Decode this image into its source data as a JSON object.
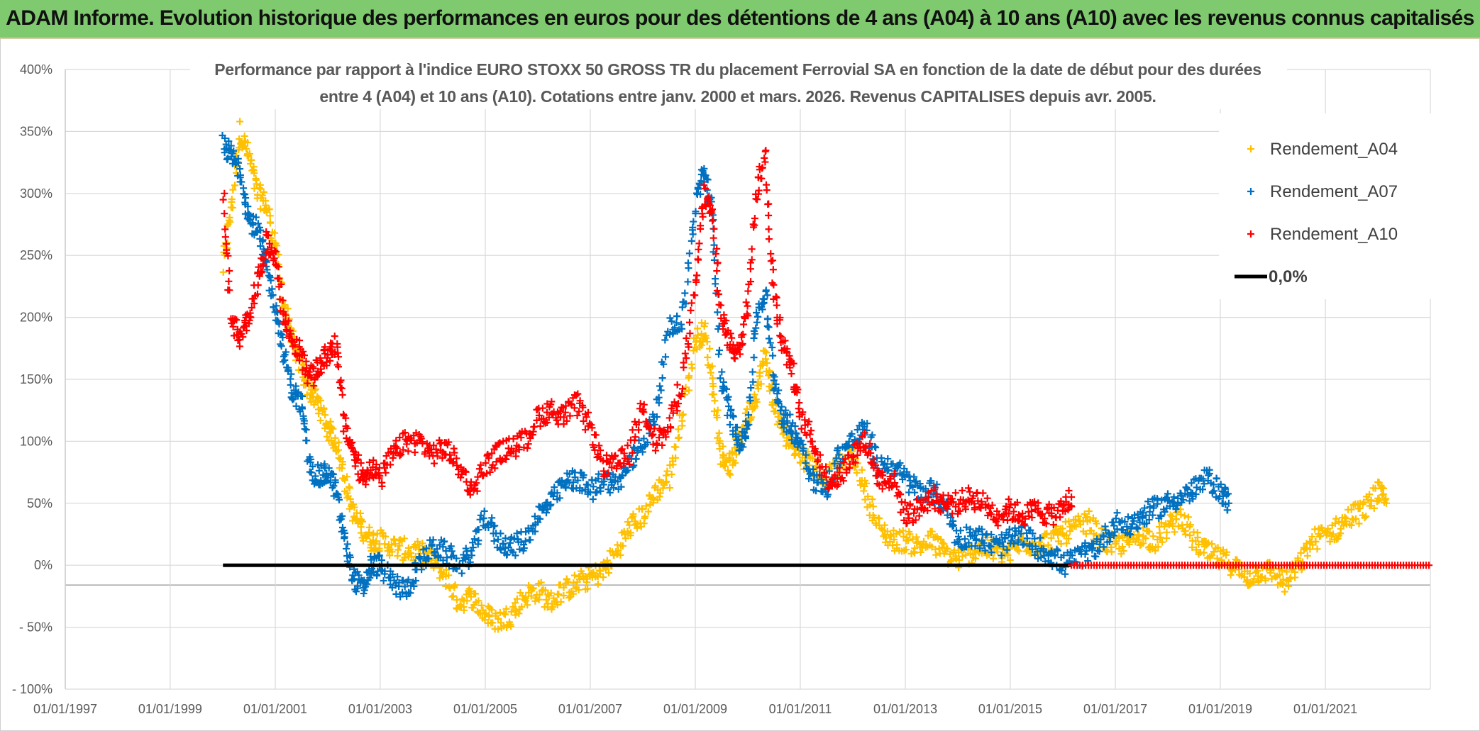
{
  "banner": {
    "title": "ADAM Informe. Evolution historique des performances en euros pour des détentions de 4 ans (A04) à 10 ans (A10) avec les revenus connus capitalisés"
  },
  "colors": {
    "banner_bg": "#7fca6e",
    "banner_accent": "#e8c000",
    "A04": "#ffc000",
    "A07": "#0070c0",
    "A10": "#ff0000",
    "zero": "#000000",
    "grid": "#d9d9d9"
  },
  "chart_data": {
    "type": "scatter",
    "title_line1": "Performance par rapport à l'indice EURO STOXX 50 GROSS TR  du placement Ferrovial SA en fonction de la date de début pour des durées",
    "title_line2": "entre 4 (A04) et 10 ans (A10). Cotations entre janv. 2000 et mars. 2026. Revenus CAPITALISES depuis avr. 2005.",
    "xlabel": "",
    "ylabel": "",
    "x_tick_labels": [
      "01/01/1997",
      "01/01/1999",
      "01/01/2001",
      "01/01/2003",
      "01/01/2005",
      "01/01/2007",
      "01/01/2009",
      "01/01/2011",
      "01/01/2013",
      "01/01/2015",
      "01/01/2017",
      "01/01/2019",
      "01/01/2021"
    ],
    "xlim": [
      "1997-01-01",
      "2023-01-01"
    ],
    "y_tick_labels": [
      "400%",
      "350%",
      "300%",
      "250%",
      "200%",
      "150%",
      "100%",
      "50%",
      "0%",
      "- 50%",
      "- 100%"
    ],
    "y_ticks": [
      400,
      350,
      300,
      250,
      200,
      150,
      100,
      50,
      0,
      -50,
      -100
    ],
    "ylim": [
      -100,
      400
    ],
    "grid": true,
    "legend_position": "top-right",
    "marker": "+",
    "series": [
      {
        "name": "Rendement_A04",
        "color": "#ffc000",
        "points": [
          [
            "2000-01-03",
            240
          ],
          [
            "2000-03-01",
            290
          ],
          [
            "2000-05-01",
            350
          ],
          [
            "2000-07-01",
            330
          ],
          [
            "2000-09-01",
            300
          ],
          [
            "2000-11-01",
            290
          ],
          [
            "2001-01-01",
            260
          ],
          [
            "2001-03-01",
            210
          ],
          [
            "2001-05-01",
            180
          ],
          [
            "2001-07-01",
            160
          ],
          [
            "2001-09-01",
            140
          ],
          [
            "2001-11-01",
            130
          ],
          [
            "2002-01-01",
            110
          ],
          [
            "2002-03-01",
            100
          ],
          [
            "2002-05-01",
            70
          ],
          [
            "2002-07-01",
            40
          ],
          [
            "2002-09-01",
            30
          ],
          [
            "2002-11-01",
            20
          ],
          [
            "2003-01-01",
            20
          ],
          [
            "2003-04-01",
            15
          ],
          [
            "2003-07-01",
            12
          ],
          [
            "2003-10-01",
            10
          ],
          [
            "2004-01-01",
            5
          ],
          [
            "2004-04-01",
            -10
          ],
          [
            "2004-07-01",
            -30
          ],
          [
            "2004-10-01",
            -25
          ],
          [
            "2005-01-01",
            -40
          ],
          [
            "2005-04-01",
            -45
          ],
          [
            "2005-07-01",
            -40
          ],
          [
            "2005-10-01",
            -25
          ],
          [
            "2006-01-01",
            -20
          ],
          [
            "2006-04-01",
            -30
          ],
          [
            "2006-07-01",
            -20
          ],
          [
            "2006-10-01",
            -15
          ],
          [
            "2007-01-01",
            -10
          ],
          [
            "2007-04-01",
            -5
          ],
          [
            "2007-07-01",
            10
          ],
          [
            "2007-10-01",
            30
          ],
          [
            "2008-01-01",
            40
          ],
          [
            "2008-04-01",
            60
          ],
          [
            "2008-07-01",
            70
          ],
          [
            "2008-10-01",
            120
          ],
          [
            "2009-01-01",
            180
          ],
          [
            "2009-03-01",
            190
          ],
          [
            "2009-05-01",
            150
          ],
          [
            "2009-07-01",
            90
          ],
          [
            "2009-09-01",
            80
          ],
          [
            "2009-11-01",
            100
          ],
          [
            "2010-01-01",
            120
          ],
          [
            "2010-03-01",
            140
          ],
          [
            "2010-05-01",
            170
          ],
          [
            "2010-07-01",
            130
          ],
          [
            "2010-09-01",
            110
          ],
          [
            "2010-11-01",
            100
          ],
          [
            "2011-01-01",
            90
          ],
          [
            "2011-04-01",
            80
          ],
          [
            "2011-07-01",
            70
          ],
          [
            "2011-10-01",
            80
          ],
          [
            "2012-01-01",
            90
          ],
          [
            "2012-04-01",
            60
          ],
          [
            "2012-07-01",
            30
          ],
          [
            "2012-10-01",
            20
          ],
          [
            "2013-01-01",
            20
          ],
          [
            "2013-04-01",
            15
          ],
          [
            "2013-07-01",
            20
          ],
          [
            "2013-10-01",
            10
          ],
          [
            "2014-01-01",
            5
          ],
          [
            "2014-04-01",
            10
          ],
          [
            "2014-07-01",
            15
          ],
          [
            "2014-10-01",
            10
          ],
          [
            "2015-01-01",
            10
          ],
          [
            "2015-04-01",
            20
          ],
          [
            "2015-07-01",
            15
          ],
          [
            "2015-10-01",
            20
          ],
          [
            "2016-01-01",
            25
          ],
          [
            "2016-04-01",
            30
          ],
          [
            "2016-07-01",
            35
          ],
          [
            "2016-10-01",
            20
          ],
          [
            "2017-01-01",
            15
          ],
          [
            "2017-04-01",
            20
          ],
          [
            "2017-07-01",
            25
          ],
          [
            "2017-10-01",
            20
          ],
          [
            "2018-01-01",
            30
          ],
          [
            "2018-04-01",
            40
          ],
          [
            "2018-07-01",
            20
          ],
          [
            "2018-10-01",
            10
          ],
          [
            "2019-01-01",
            5
          ],
          [
            "2019-04-01",
            0
          ],
          [
            "2019-07-01",
            -10
          ],
          [
            "2019-10-01",
            -5
          ],
          [
            "2020-01-01",
            -5
          ],
          [
            "2020-04-01",
            -15
          ],
          [
            "2020-07-01",
            0
          ],
          [
            "2020-10-01",
            20
          ],
          [
            "2021-01-01",
            25
          ],
          [
            "2021-04-01",
            30
          ],
          [
            "2021-07-01",
            40
          ],
          [
            "2021-10-01",
            45
          ],
          [
            "2022-01-01",
            60
          ],
          [
            "2022-03-01",
            50
          ]
        ]
      },
      {
        "name": "Rendement_A07",
        "color": "#0070c0",
        "points": [
          [
            "2000-01-03",
            340
          ],
          [
            "2000-03-01",
            330
          ],
          [
            "2000-05-01",
            320
          ],
          [
            "2000-07-01",
            280
          ],
          [
            "2000-09-01",
            270
          ],
          [
            "2000-11-01",
            240
          ],
          [
            "2001-01-01",
            210
          ],
          [
            "2001-03-01",
            170
          ],
          [
            "2001-05-01",
            140
          ],
          [
            "2001-07-01",
            130
          ],
          [
            "2001-09-01",
            80
          ],
          [
            "2001-11-01",
            70
          ],
          [
            "2002-01-01",
            75
          ],
          [
            "2002-03-01",
            60
          ],
          [
            "2002-05-01",
            20
          ],
          [
            "2002-07-01",
            -10
          ],
          [
            "2002-09-01",
            -20
          ],
          [
            "2002-11-01",
            0
          ],
          [
            "2003-01-01",
            0
          ],
          [
            "2003-04-01",
            -15
          ],
          [
            "2003-07-01",
            -20
          ],
          [
            "2003-10-01",
            0
          ],
          [
            "2004-01-01",
            15
          ],
          [
            "2004-04-01",
            10
          ],
          [
            "2004-07-01",
            0
          ],
          [
            "2004-10-01",
            10
          ],
          [
            "2005-01-01",
            40
          ],
          [
            "2005-04-01",
            20
          ],
          [
            "2005-07-01",
            15
          ],
          [
            "2005-10-01",
            20
          ],
          [
            "2006-01-01",
            40
          ],
          [
            "2006-04-01",
            50
          ],
          [
            "2006-07-01",
            65
          ],
          [
            "2006-10-01",
            70
          ],
          [
            "2007-01-01",
            60
          ],
          [
            "2007-04-01",
            70
          ],
          [
            "2007-07-01",
            65
          ],
          [
            "2007-10-01",
            80
          ],
          [
            "2008-01-01",
            100
          ],
          [
            "2008-04-01",
            120
          ],
          [
            "2008-07-01",
            190
          ],
          [
            "2008-10-01",
            200
          ],
          [
            "2009-01-01",
            290
          ],
          [
            "2009-03-01",
            320
          ],
          [
            "2009-05-01",
            280
          ],
          [
            "2009-07-01",
            150
          ],
          [
            "2009-09-01",
            120
          ],
          [
            "2009-11-01",
            100
          ],
          [
            "2010-01-01",
            110
          ],
          [
            "2010-03-01",
            200
          ],
          [
            "2010-05-01",
            220
          ],
          [
            "2010-07-01",
            150
          ],
          [
            "2010-09-01",
            120
          ],
          [
            "2010-11-01",
            110
          ],
          [
            "2011-01-01",
            100
          ],
          [
            "2011-04-01",
            70
          ],
          [
            "2011-07-01",
            60
          ],
          [
            "2011-10-01",
            90
          ],
          [
            "2012-01-01",
            100
          ],
          [
            "2012-04-01",
            110
          ],
          [
            "2012-07-01",
            80
          ],
          [
            "2012-10-01",
            80
          ],
          [
            "2013-01-01",
            70
          ],
          [
            "2013-04-01",
            60
          ],
          [
            "2013-07-01",
            60
          ],
          [
            "2013-10-01",
            50
          ],
          [
            "2014-01-01",
            20
          ],
          [
            "2014-04-01",
            25
          ],
          [
            "2014-07-01",
            20
          ],
          [
            "2014-10-01",
            15
          ],
          [
            "2015-01-01",
            20
          ],
          [
            "2015-04-01",
            25
          ],
          [
            "2015-07-01",
            15
          ],
          [
            "2015-10-01",
            10
          ],
          [
            "2016-01-01",
            0
          ],
          [
            "2016-04-01",
            5
          ],
          [
            "2016-07-01",
            10
          ],
          [
            "2016-10-01",
            20
          ],
          [
            "2017-01-01",
            35
          ],
          [
            "2017-04-01",
            30
          ],
          [
            "2017-07-01",
            40
          ],
          [
            "2017-10-01",
            45
          ],
          [
            "2018-01-01",
            50
          ],
          [
            "2018-04-01",
            55
          ],
          [
            "2018-07-01",
            60
          ],
          [
            "2018-10-01",
            70
          ],
          [
            "2019-01-01",
            60
          ],
          [
            "2019-03-01",
            50
          ]
        ]
      },
      {
        "name": "Rendement_A10",
        "color": "#ff0000",
        "points": [
          [
            "2000-01-03",
            300
          ],
          [
            "2000-03-01",
            200
          ],
          [
            "2000-05-01",
            180
          ],
          [
            "2000-07-01",
            200
          ],
          [
            "2000-09-01",
            230
          ],
          [
            "2000-11-01",
            260
          ],
          [
            "2001-01-01",
            250
          ],
          [
            "2001-03-01",
            200
          ],
          [
            "2001-05-01",
            180
          ],
          [
            "2001-07-01",
            170
          ],
          [
            "2001-09-01",
            150
          ],
          [
            "2001-11-01",
            160
          ],
          [
            "2002-01-01",
            170
          ],
          [
            "2002-03-01",
            180
          ],
          [
            "2002-05-01",
            110
          ],
          [
            "2002-07-01",
            90
          ],
          [
            "2002-09-01",
            70
          ],
          [
            "2002-11-01",
            80
          ],
          [
            "2003-01-01",
            70
          ],
          [
            "2003-04-01",
            90
          ],
          [
            "2003-07-01",
            100
          ],
          [
            "2003-10-01",
            100
          ],
          [
            "2004-01-01",
            90
          ],
          [
            "2004-04-01",
            95
          ],
          [
            "2004-07-01",
            80
          ],
          [
            "2004-10-01",
            60
          ],
          [
            "2005-01-01",
            80
          ],
          [
            "2005-04-01",
            90
          ],
          [
            "2005-07-01",
            95
          ],
          [
            "2005-10-01",
            100
          ],
          [
            "2006-01-01",
            120
          ],
          [
            "2006-04-01",
            125
          ],
          [
            "2006-07-01",
            120
          ],
          [
            "2006-10-01",
            130
          ],
          [
            "2007-01-01",
            110
          ],
          [
            "2007-04-01",
            80
          ],
          [
            "2007-07-01",
            80
          ],
          [
            "2007-10-01",
            90
          ],
          [
            "2008-01-01",
            130
          ],
          [
            "2008-04-01",
            100
          ],
          [
            "2008-07-01",
            110
          ],
          [
            "2008-10-01",
            150
          ],
          [
            "2009-01-01",
            220
          ],
          [
            "2009-03-01",
            300
          ],
          [
            "2009-05-01",
            280
          ],
          [
            "2009-07-01",
            200
          ],
          [
            "2009-09-01",
            180
          ],
          [
            "2009-11-01",
            170
          ],
          [
            "2010-01-01",
            210
          ],
          [
            "2010-03-01",
            300
          ],
          [
            "2010-05-01",
            330
          ],
          [
            "2010-07-01",
            220
          ],
          [
            "2010-09-01",
            180
          ],
          [
            "2010-11-01",
            160
          ],
          [
            "2011-01-01",
            120
          ],
          [
            "2011-04-01",
            100
          ],
          [
            "2011-07-01",
            70
          ],
          [
            "2011-10-01",
            70
          ],
          [
            "2012-01-01",
            90
          ],
          [
            "2012-04-01",
            100
          ],
          [
            "2012-07-01",
            70
          ],
          [
            "2012-10-01",
            70
          ],
          [
            "2013-01-01",
            40
          ],
          [
            "2013-04-01",
            45
          ],
          [
            "2013-07-01",
            55
          ],
          [
            "2013-10-01",
            50
          ],
          [
            "2014-01-01",
            50
          ],
          [
            "2014-04-01",
            55
          ],
          [
            "2014-07-01",
            50
          ],
          [
            "2014-10-01",
            40
          ],
          [
            "2015-01-01",
            45
          ],
          [
            "2015-04-01",
            40
          ],
          [
            "2015-07-01",
            45
          ],
          [
            "2015-10-01",
            40
          ],
          [
            "2016-01-01",
            45
          ],
          [
            "2016-03-01",
            55
          ]
        ]
      },
      {
        "name": "0,0%",
        "color": "#000000",
        "type": "line",
        "points": [
          [
            "2000-01-03",
            0
          ],
          [
            "2016-03-01",
            0
          ]
        ]
      }
    ],
    "overlay_zero_markers": {
      "series": "Rendement_A10",
      "x_from": "2016-03-01",
      "x_to": "2023-01-01",
      "y": 0
    }
  }
}
